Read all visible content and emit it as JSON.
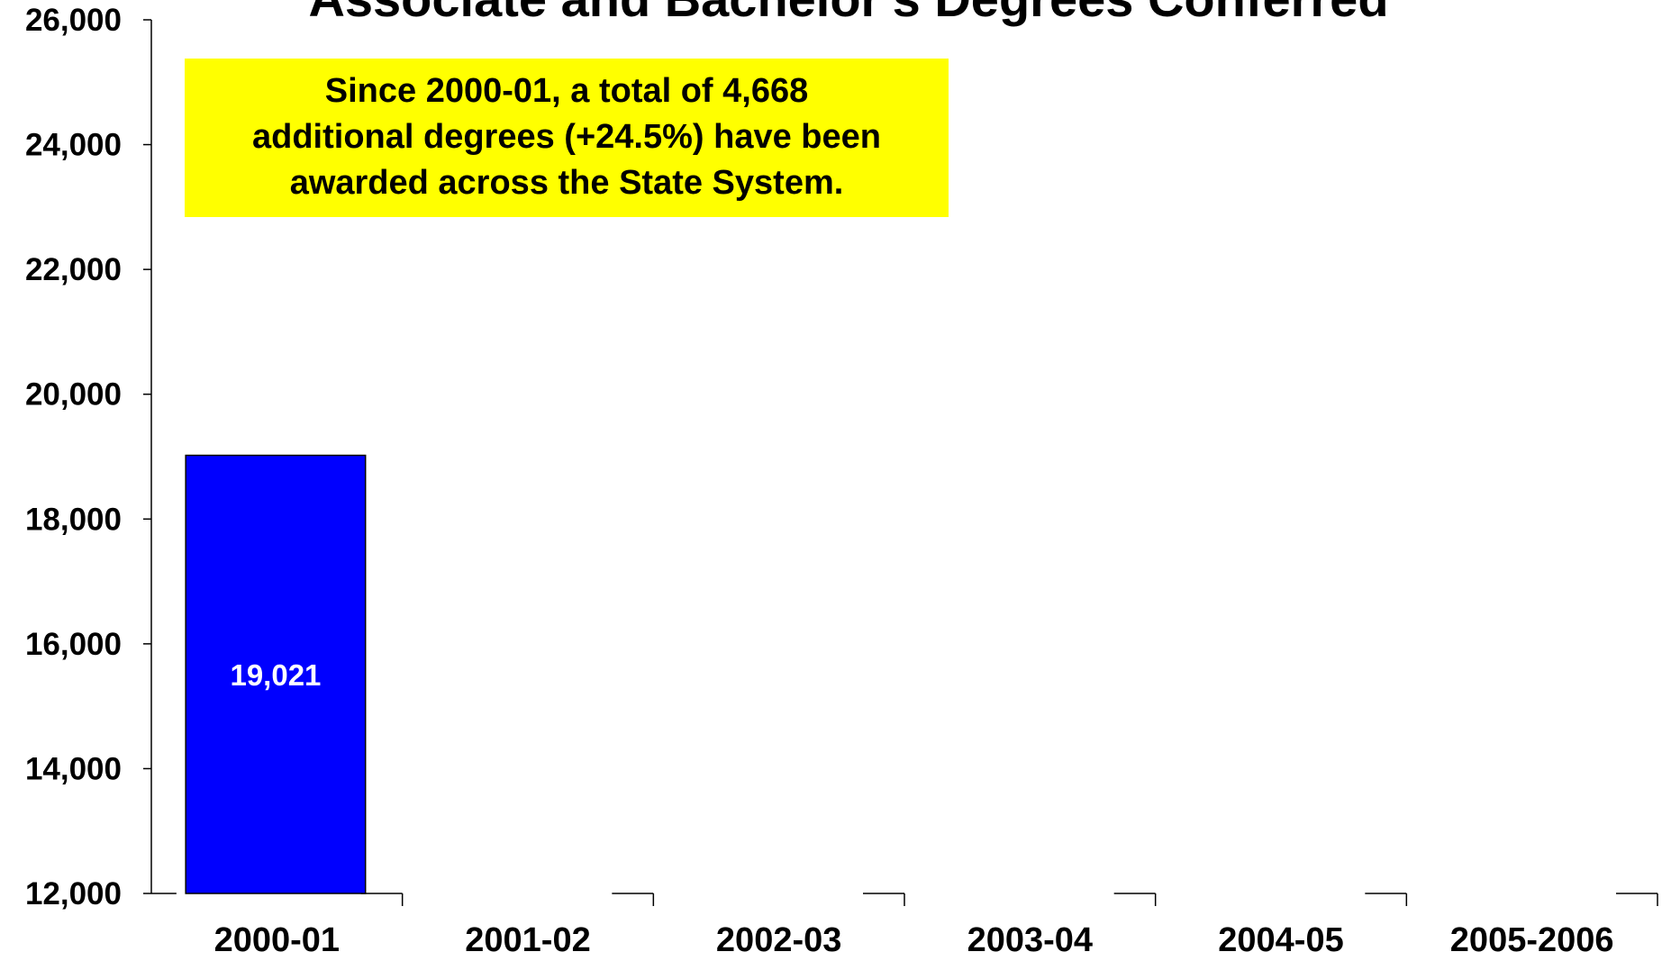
{
  "chart_data": {
    "type": "bar",
    "title": "Associate and Bachelor's Degrees Conferred",
    "annotation": [
      "Since 2000-01, a total of 4,668",
      "additional degrees (+24.5%) have been",
      "awarded across the State System."
    ],
    "categories": [
      "2000-01",
      "2001-02",
      "2002-03",
      "2003-04",
      "2004-05",
      "2005-2006"
    ],
    "values": [
      19021,
      null,
      null,
      null,
      null,
      null
    ],
    "value_labels": [
      "19,021",
      null,
      null,
      null,
      null,
      null
    ],
    "color": "#0000ff",
    "annotation_color": "#ffff00",
    "ylim": [
      12000,
      26000
    ],
    "yticks": [
      {
        "value": 12000,
        "label": "12,000"
      },
      {
        "value": 14000,
        "label": "14,000"
      },
      {
        "value": 16000,
        "label": "16,000"
      },
      {
        "value": 18000,
        "label": "18,000"
      },
      {
        "value": 20000,
        "label": "20,000"
      },
      {
        "value": 22000,
        "label": "22,000"
      },
      {
        "value": 24000,
        "label": "24,000"
      },
      {
        "value": 26000,
        "label": "26,000"
      }
    ],
    "grid": false
  }
}
